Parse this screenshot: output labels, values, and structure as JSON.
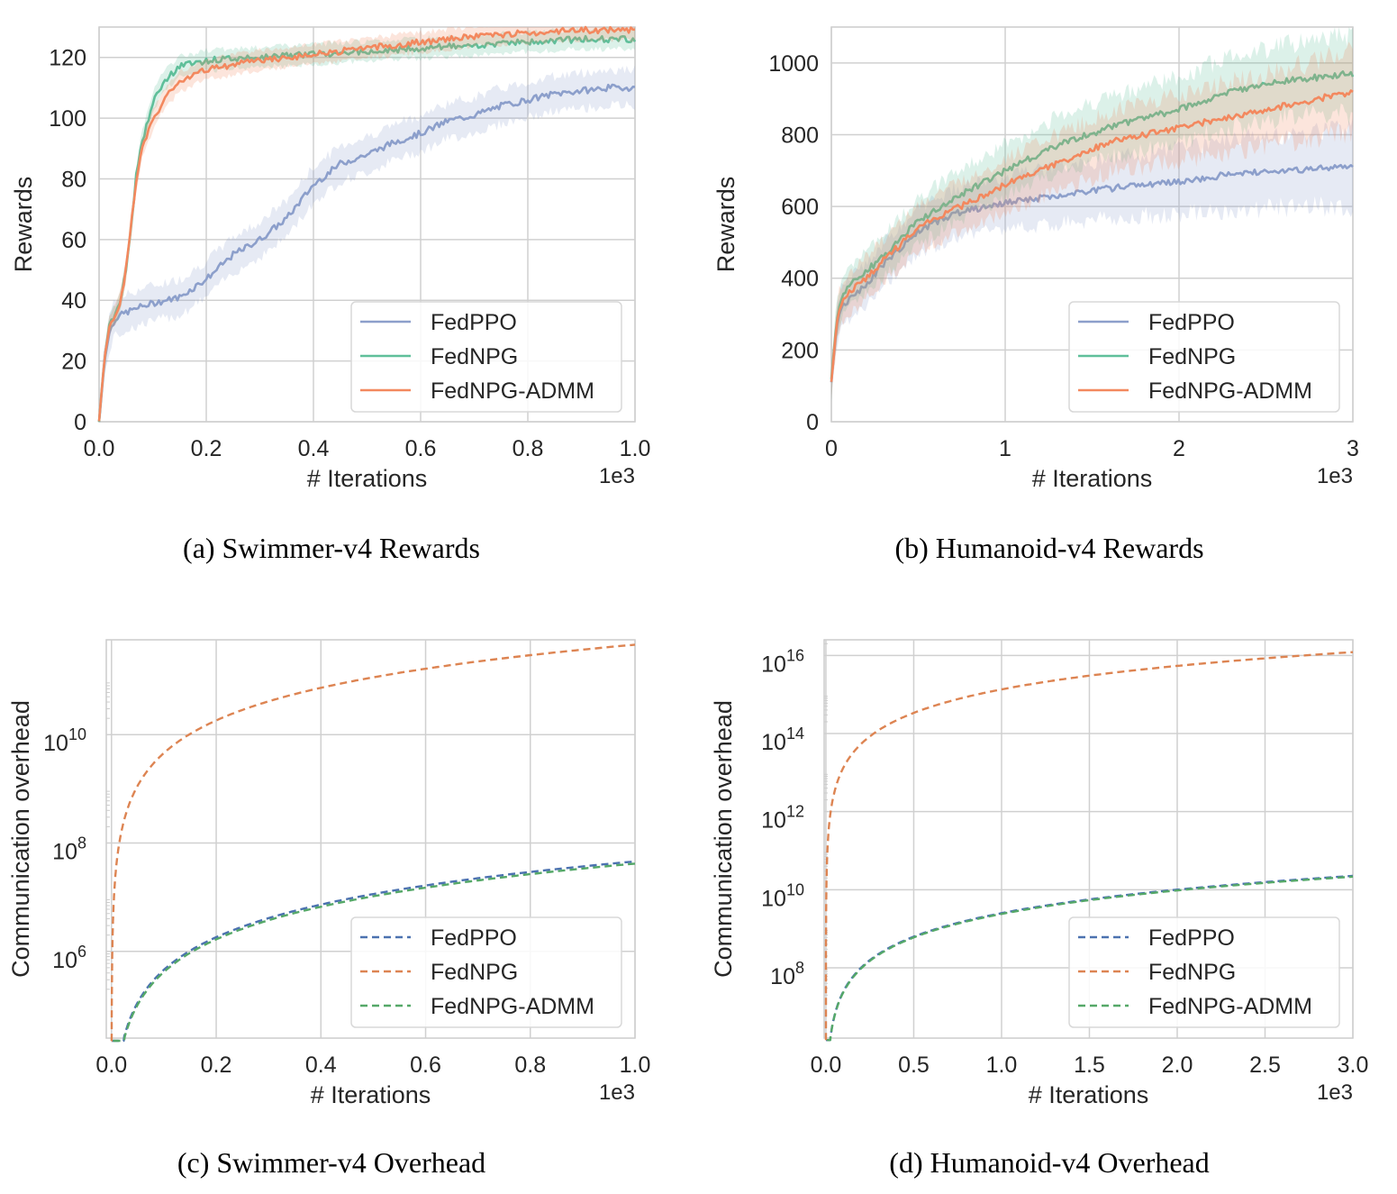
{
  "colors": {
    "fedppo": "#8c9fcb",
    "fednpg": "#5fbf9a",
    "fednpg_admm": "#f3885e",
    "fedppo_dashed": "#4c72b0",
    "fednpg_dashed": "#dd8452",
    "fednpg_admm_dashed": "#55a868",
    "grid": "#d0d0d0",
    "frame": "#cccccc",
    "text": "#262626"
  },
  "chart_data": [
    {
      "type": "line",
      "caption": "(a) Swimmer-v4 Rewards",
      "xlabel": "# Iterations",
      "ylabel": "Rewards",
      "x_offset_text": "1e3",
      "xlim": [
        0,
        1.0
      ],
      "ylim": [
        0,
        130
      ],
      "xticks": [
        0.0,
        0.2,
        0.4,
        0.6,
        0.8,
        1.0
      ],
      "xtick_labels": [
        "0.0",
        "0.2",
        "0.4",
        "0.6",
        "0.8",
        "1.0"
      ],
      "yticks": [
        0,
        20,
        40,
        60,
        80,
        100,
        120
      ],
      "ytick_labels": [
        "0",
        "20",
        "40",
        "60",
        "80",
        "100",
        "120"
      ],
      "yscale": "linear",
      "grid": true,
      "legend": "lower-right",
      "shaded_bands": true,
      "series": [
        {
          "name": "FedPPO",
          "color_key": "fedppo",
          "style": "solid",
          "x": [
            0,
            0.01,
            0.02,
            0.03,
            0.05,
            0.08,
            0.1,
            0.15,
            0.2,
            0.25,
            0.3,
            0.35,
            0.4,
            0.45,
            0.5,
            0.55,
            0.6,
            0.65,
            0.7,
            0.75,
            0.8,
            0.85,
            0.9,
            0.95,
            1.0
          ],
          "y": [
            0,
            20,
            30,
            34,
            36,
            38,
            39,
            41,
            47,
            55,
            60,
            67,
            78,
            85,
            88,
            92,
            95,
            99,
            101,
            104,
            106,
            108,
            109,
            110,
            110
          ]
        },
        {
          "name": "FedNPG",
          "color_key": "fednpg",
          "style": "solid",
          "x": [
            0,
            0.01,
            0.02,
            0.03,
            0.04,
            0.05,
            0.06,
            0.07,
            0.08,
            0.1,
            0.12,
            0.15,
            0.2,
            0.3,
            0.4,
            0.5,
            0.6,
            0.7,
            0.8,
            0.9,
            1.0
          ],
          "y": [
            0,
            21,
            33,
            35,
            40,
            50,
            65,
            82,
            92,
            105,
            112,
            117,
            119,
            120,
            121,
            122,
            123,
            124,
            125,
            126,
            126
          ]
        },
        {
          "name": "FedNPG-ADMM",
          "color_key": "fednpg_admm",
          "style": "solid",
          "x": [
            0,
            0.01,
            0.02,
            0.03,
            0.04,
            0.05,
            0.06,
            0.07,
            0.08,
            0.1,
            0.12,
            0.15,
            0.2,
            0.3,
            0.4,
            0.5,
            0.6,
            0.7,
            0.8,
            0.9,
            1.0
          ],
          "y": [
            0,
            21,
            32,
            35,
            40,
            50,
            65,
            80,
            90,
            99,
            106,
            112,
            116,
            119,
            121,
            123,
            125,
            127,
            128,
            129,
            129
          ]
        }
      ]
    },
    {
      "type": "line",
      "caption": "(b) Humanoid-v4 Rewards",
      "xlabel": "# Iterations",
      "ylabel": "Rewards",
      "x_offset_text": "1e3",
      "xlim": [
        0,
        3
      ],
      "ylim": [
        0,
        1100
      ],
      "xticks": [
        0,
        1,
        2,
        3
      ],
      "xtick_labels": [
        "0",
        "1",
        "2",
        "3"
      ],
      "yticks": [
        0,
        200,
        400,
        600,
        800,
        1000
      ],
      "ytick_labels": [
        "0",
        "200",
        "400",
        "600",
        "800",
        "1000"
      ],
      "yscale": "linear",
      "grid": true,
      "legend": "lower-right",
      "shaded_bands": true,
      "series": [
        {
          "name": "FedPPO",
          "color_key": "fedppo",
          "style": "solid",
          "x": [
            0,
            0.03,
            0.05,
            0.1,
            0.2,
            0.3,
            0.5,
            0.7,
            1.0,
            1.3,
            1.6,
            2.0,
            2.3,
            2.6,
            3.0
          ],
          "y": [
            110,
            260,
            310,
            340,
            380,
            440,
            530,
            580,
            610,
            630,
            650,
            670,
            690,
            700,
            710
          ]
        },
        {
          "name": "FedNPG",
          "color_key": "fednpg",
          "style": "solid",
          "x": [
            0,
            0.03,
            0.05,
            0.1,
            0.2,
            0.3,
            0.5,
            0.7,
            1.0,
            1.3,
            1.6,
            2.0,
            2.3,
            2.6,
            3.0
          ],
          "y": [
            120,
            280,
            330,
            380,
            420,
            460,
            560,
            620,
            700,
            770,
            820,
            870,
            920,
            950,
            970
          ]
        },
        {
          "name": "FedNPG-ADMM",
          "color_key": "fednpg_admm",
          "style": "solid",
          "x": [
            0,
            0.03,
            0.05,
            0.1,
            0.2,
            0.3,
            0.5,
            0.7,
            1.0,
            1.3,
            1.6,
            2.0,
            2.3,
            2.6,
            3.0
          ],
          "y": [
            110,
            270,
            320,
            360,
            400,
            450,
            540,
            590,
            660,
            720,
            780,
            820,
            850,
            880,
            920
          ]
        }
      ]
    },
    {
      "type": "line",
      "caption": "(c) Swimmer-v4 Overhead",
      "xlabel": "# Iterations",
      "ylabel": "Communication overhead",
      "x_offset_text": "1e3",
      "xlim": [
        -0.01,
        1.0
      ],
      "ylim_log10": [
        4.4,
        11.75
      ],
      "xticks": [
        0.0,
        0.2,
        0.4,
        0.6,
        0.8,
        1.0
      ],
      "xtick_labels": [
        "0.0",
        "0.2",
        "0.4",
        "0.6",
        "0.8",
        "1.0"
      ],
      "yticks_log10": [
        6,
        8,
        10
      ],
      "ytick_bases": [
        "10",
        "10",
        "10"
      ],
      "ytick_exps": [
        "6",
        "8",
        "10"
      ],
      "yscale": "log",
      "grid": true,
      "legend": "lower-right",
      "shaded_bands": false,
      "series": [
        {
          "name": "FedPPO",
          "color_key": "fedppo_dashed",
          "style": "dashed",
          "model": "power",
          "a_log10": 7.66,
          "offset": 0.0
        },
        {
          "name": "FedNPG",
          "color_key": "fednpg_dashed",
          "style": "dashed",
          "model": "power",
          "a_log10": 11.66,
          "offset": 0.0
        },
        {
          "name": "FedNPG-ADMM",
          "color_key": "fednpg_admm_dashed",
          "style": "dashed",
          "model": "power",
          "a_log10": 7.62,
          "offset": 0.003
        }
      ]
    },
    {
      "type": "line",
      "caption": "(d) Humanoid-v4 Overhead",
      "xlabel": "# Iterations",
      "ylabel": "Communication overhead",
      "x_offset_text": "1e3",
      "xlim": [
        -0.01,
        3.0
      ],
      "ylim_log10": [
        6.2,
        16.4
      ],
      "xticks": [
        0.0,
        0.5,
        1.0,
        1.5,
        2.0,
        2.5,
        3.0
      ],
      "xtick_labels": [
        "0.0",
        "0.5",
        "1.0",
        "1.5",
        "2.0",
        "2.5",
        "3.0"
      ],
      "yticks_log10": [
        8,
        10,
        12,
        14,
        16
      ],
      "ytick_bases": [
        "10",
        "10",
        "10",
        "10",
        "10"
      ],
      "ytick_exps": [
        "8",
        "10",
        "12",
        "14",
        "16"
      ],
      "yscale": "log",
      "grid": true,
      "legend": "lower-right",
      "shaded_bands": false,
      "series": [
        {
          "name": "FedPPO",
          "color_key": "fedppo_dashed",
          "style": "dashed",
          "model": "power",
          "a_log10": 9.4,
          "offset": 0.0
        },
        {
          "name": "FedNPG",
          "color_key": "fednpg_dashed",
          "style": "dashed",
          "model": "power",
          "a_log10": 15.13,
          "offset": 0.0
        },
        {
          "name": "FedNPG-ADMM",
          "color_key": "fednpg_admm_dashed",
          "style": "dashed",
          "model": "power",
          "a_log10": 9.38,
          "offset": 0.006
        }
      ]
    }
  ]
}
